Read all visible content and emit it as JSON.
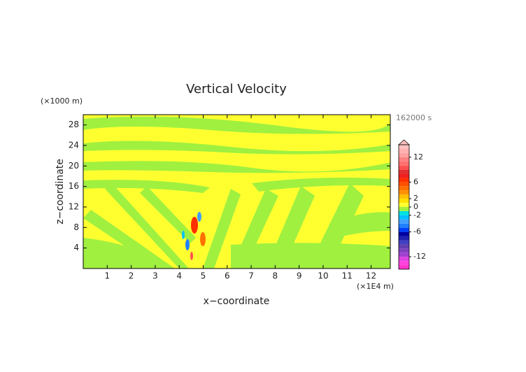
{
  "chart_data": {
    "type": "contour",
    "title": "Vertical Velocity",
    "x_label": "x−coordinate",
    "y_label": "z−coordinate",
    "x_unit": "(×1E4 m)",
    "y_unit": "(×1000 m)",
    "time_label": "162000 s",
    "xlim": [
      0,
      12.8
    ],
    "xticks": [
      1,
      2,
      3,
      4,
      5,
      6,
      7,
      8,
      9,
      10,
      11,
      12
    ],
    "ylim": [
      0,
      30
    ],
    "yticks": [
      4,
      8,
      12,
      16,
      20,
      24,
      28
    ],
    "colorbar": {
      "lim": [
        -15,
        15
      ],
      "ticks": [
        12,
        6,
        2,
        0,
        -2,
        -6,
        -12
      ],
      "colors": [
        "#ff33cc",
        "#ff44dd",
        "#e040e0",
        "#a040d0",
        "#8040c0",
        "#6040b0",
        "#4040c0",
        "#2020b0",
        "#0000a0",
        "#0040ff",
        "#2080ff",
        "#40a0ff",
        "#00c0ff",
        "#00e0e0",
        "#a0f040",
        "#ffff30",
        "#ffe000",
        "#ffc000",
        "#ff9000",
        "#ff7000",
        "#ff5000",
        "#ff3000",
        "#f02020",
        "#e03030",
        "#ff5050",
        "#ff7070",
        "#ff8080",
        "#ffa0a0",
        "#ffb0b0",
        "#ffc0c0"
      ]
    }
  }
}
